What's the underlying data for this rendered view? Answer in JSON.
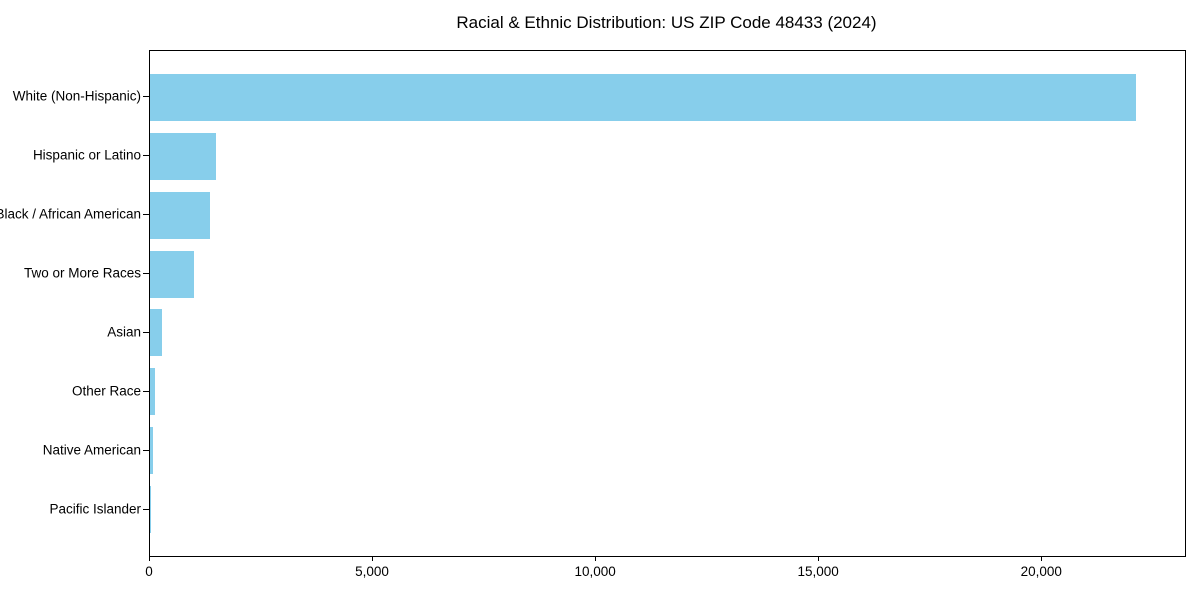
{
  "chart_data": {
    "type": "bar",
    "orientation": "horizontal",
    "title": "Racial & Ethnic Distribution: US ZIP Code 48433 (2024)",
    "categories": [
      "White (Non-Hispanic)",
      "Hispanic or Latino",
      "Black / African American",
      "Two or More Races",
      "Asian",
      "Other Race",
      "Native American",
      "Pacific Islander"
    ],
    "values": [
      22100,
      1480,
      1350,
      990,
      270,
      110,
      65,
      5
    ],
    "xlabel": "",
    "ylabel": "",
    "xlim": [
      0,
      23200
    ],
    "xticks": [
      0,
      5000,
      10000,
      15000,
      20000
    ],
    "xtick_labels": [
      "0",
      "5,000",
      "10,000",
      "15,000",
      "20,000"
    ],
    "grid": false,
    "legend": "none",
    "bar_color": "#87CEEB",
    "axis_color": "#000000",
    "text_color": "#000000",
    "background_color": "#ffffff"
  }
}
